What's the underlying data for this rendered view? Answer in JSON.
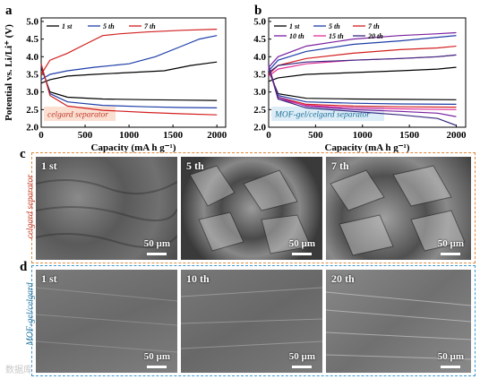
{
  "colors": {
    "celgard_box": "#fbe0d2",
    "mof_box": "#dcedf7",
    "celgard_label": "#c0392b",
    "mof_label": "#1f6f99",
    "row_c_border": "#e08a3a",
    "row_d_border": "#3a9ad0"
  },
  "panels": {
    "a": "a",
    "b": "b",
    "c": "c",
    "d": "d"
  },
  "chart_data": [
    {
      "panel": "a",
      "type": "line",
      "xlabel": "Capacity (mA h g⁻¹)",
      "ylabel": "Potential vs. Li/Li⁺ (V)",
      "xlim": [
        0,
        2100
      ],
      "ylim": [
        2.0,
        5.1
      ],
      "xticks": [
        "0",
        "500",
        "1000",
        "1500",
        "2000"
      ],
      "yticks": [
        "2.0",
        "2.5",
        "3.0",
        "3.5",
        "4.0",
        "4.5",
        "5.0"
      ],
      "box_label": "celgard separator",
      "legend_position": "top-left",
      "series": [
        {
          "name": "1 st",
          "color": "#000000",
          "charge": {
            "x": [
              0,
              100,
              300,
              600,
              1000,
              1400,
              1700,
              2000
            ],
            "y": [
              3.25,
              3.35,
              3.45,
              3.5,
              3.55,
              3.6,
              3.75,
              3.85
            ]
          },
          "discharge": {
            "x": [
              0,
              100,
              300,
              700,
              1200,
              1600,
              2000
            ],
            "y": [
              3.7,
              3.0,
              2.85,
              2.8,
              2.78,
              2.77,
              2.76
            ]
          }
        },
        {
          "name": "5 th",
          "color": "#1f3ea8",
          "charge": {
            "x": [
              0,
              100,
              300,
              600,
              1000,
              1300,
              1600,
              1800,
              2000
            ],
            "y": [
              3.35,
              3.5,
              3.6,
              3.7,
              3.8,
              4.0,
              4.3,
              4.5,
              4.6
            ]
          },
          "discharge": {
            "x": [
              0,
              100,
              300,
              700,
              1200,
              1600,
              2000
            ],
            "y": [
              3.75,
              2.95,
              2.72,
              2.62,
              2.58,
              2.56,
              2.55
            ]
          }
        },
        {
          "name": "7 th",
          "color": "#d22020",
          "charge": {
            "x": [
              0,
              100,
              300,
              500,
              700,
              900,
              1200,
              1600,
              2000
            ],
            "y": [
              3.5,
              3.9,
              4.1,
              4.35,
              4.6,
              4.65,
              4.7,
              4.75,
              4.78
            ]
          },
          "discharge": {
            "x": [
              0,
              100,
              300,
              700,
              1200,
              1600,
              2000
            ],
            "y": [
              3.8,
              2.9,
              2.6,
              2.48,
              2.42,
              2.38,
              2.35
            ]
          }
        }
      ]
    },
    {
      "panel": "b",
      "type": "line",
      "xlabel": "Capacity (mA h g⁻¹)",
      "ylabel": "",
      "xlim": [
        0,
        2100
      ],
      "ylim": [
        2.0,
        5.1
      ],
      "xticks": [
        "0",
        "500",
        "1000",
        "1500",
        "2000"
      ],
      "yticks": [
        "2.0",
        "2.5",
        "3.0",
        "3.5",
        "4.0",
        "4.5",
        "5.0"
      ],
      "box_label": "MOF-gel/celgard separator",
      "legend_position": "top-left",
      "series": [
        {
          "name": "1 st",
          "color": "#000000",
          "charge": {
            "x": [
              0,
              100,
              400,
              900,
              1400,
              1800,
              2000
            ],
            "y": [
              3.3,
              3.4,
              3.5,
              3.55,
              3.6,
              3.65,
              3.7
            ]
          },
          "discharge": {
            "x": [
              0,
              100,
              400,
              900,
              1400,
              2000
            ],
            "y": [
              3.6,
              2.95,
              2.82,
              2.8,
              2.79,
              2.78
            ]
          }
        },
        {
          "name": "5 th",
          "color": "#1f3ea8",
          "charge": {
            "x": [
              0,
              100,
              400,
              900,
              1400,
              1800,
              2000
            ],
            "y": [
              3.6,
              3.9,
              4.15,
              4.35,
              4.45,
              4.55,
              4.6
            ]
          },
          "discharge": {
            "x": [
              0,
              100,
              400,
              900,
              1400,
              2000
            ],
            "y": [
              3.65,
              2.9,
              2.72,
              2.68,
              2.66,
              2.65
            ]
          }
        },
        {
          "name": "7 th",
          "color": "#d22020",
          "charge": {
            "x": [
              0,
              100,
              400,
              900,
              1400,
              1800,
              2000
            ],
            "y": [
              3.5,
              3.75,
              3.95,
              4.1,
              4.2,
              4.25,
              4.3
            ]
          },
          "discharge": {
            "x": [
              0,
              100,
              400,
              900,
              1400,
              2000
            ],
            "y": [
              3.7,
              2.85,
              2.65,
              2.6,
              2.58,
              2.57
            ]
          }
        },
        {
          "name": "10 th",
          "color": "#7a1fa0",
          "charge": {
            "x": [
              0,
              100,
              400,
              900,
              1400,
              1800,
              2000
            ],
            "y": [
              3.7,
              4.0,
              4.3,
              4.5,
              4.6,
              4.65,
              4.68
            ]
          },
          "discharge": {
            "x": [
              0,
              100,
              400,
              900,
              1400,
              1800,
              2000
            ],
            "y": [
              3.75,
              2.85,
              2.6,
              2.5,
              2.45,
              2.4,
              2.3
            ]
          }
        },
        {
          "name": "15 th",
          "color": "#e0309a",
          "charge": {
            "x": [
              0,
              100,
              400,
              900,
              1400,
              1800,
              2000
            ],
            "y": [
              3.45,
              3.65,
              3.8,
              3.9,
              3.95,
              4.0,
              4.05
            ]
          },
          "discharge": {
            "x": [
              0,
              100,
              400,
              900,
              1400,
              2000
            ],
            "y": [
              3.7,
              2.8,
              2.62,
              2.55,
              2.52,
              2.5
            ]
          }
        },
        {
          "name": "20 th",
          "color": "#3a2a80",
          "charge": {
            "x": [
              0,
              100,
              400,
              900,
              1400,
              1800,
              2000
            ],
            "y": [
              3.55,
              3.75,
              3.85,
              3.9,
              3.95,
              4.0,
              4.05
            ]
          },
          "discharge": {
            "x": [
              0,
              100,
              400,
              900,
              1400,
              1800,
              2000
            ],
            "y": [
              3.75,
              2.8,
              2.55,
              2.45,
              2.35,
              2.25,
              2.05
            ]
          }
        }
      ]
    }
  ],
  "sem": {
    "row_c": {
      "side_label": "celgard separator",
      "tiles": [
        {
          "label": "1 st",
          "scale": "50 µm"
        },
        {
          "label": "5 th",
          "scale": "50 µm"
        },
        {
          "label": "7 th",
          "scale": "50 µm"
        }
      ]
    },
    "row_d": {
      "side_label_1": "MOF-gel/celgard",
      "side_label_2": "separator",
      "tiles": [
        {
          "label": "1 st",
          "scale": "50 µm"
        },
        {
          "label": "10 th",
          "scale": "50 µm"
        },
        {
          "label": "20 th",
          "scale": "50 µm"
        }
      ]
    }
  },
  "watermark": "数据库"
}
